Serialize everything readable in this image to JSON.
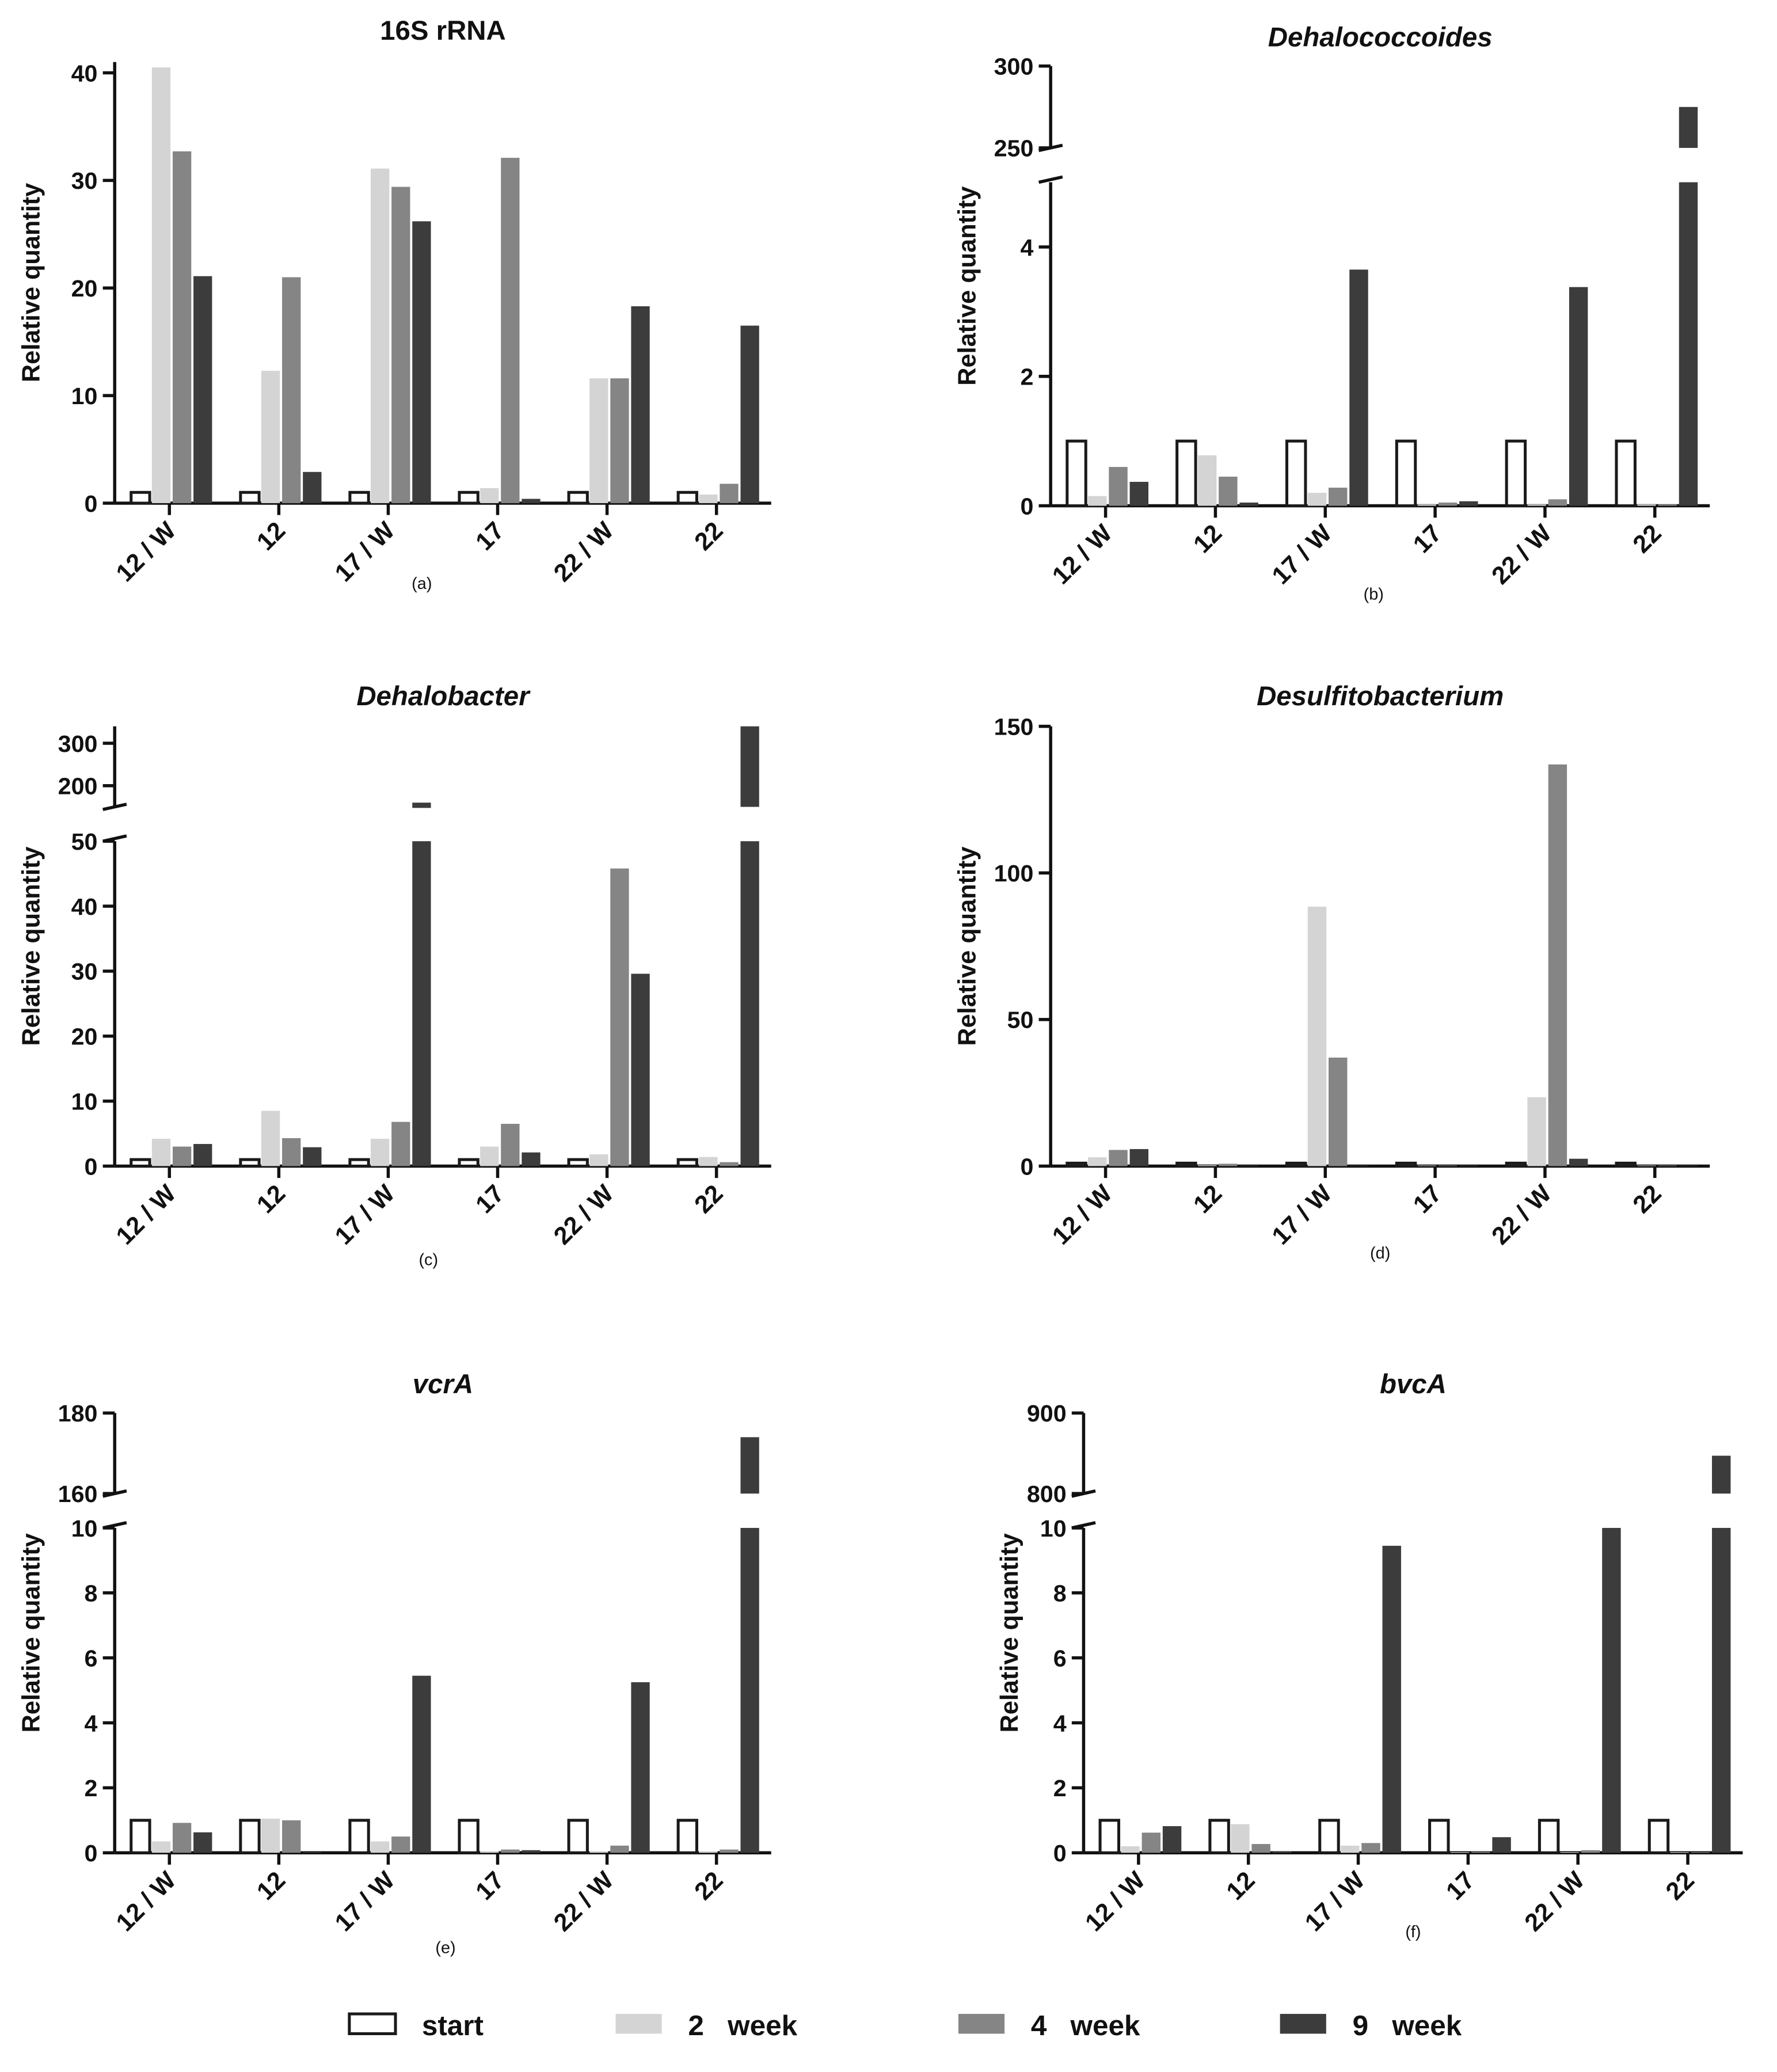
{
  "legend": {
    "items": [
      {
        "key": "start",
        "label": "start",
        "color": "#ffffff"
      },
      {
        "key": "w2",
        "label": "2   week",
        "color": "#d4d4d4"
      },
      {
        "key": "w4",
        "label": "4   week",
        "color": "#858585"
      },
      {
        "key": "w9",
        "label": "9   week",
        "color": "#3c3c3c"
      }
    ],
    "outline_color": "#1a1a1a"
  },
  "chart_data": [
    {
      "type": "bar",
      "title": "16S rRNA",
      "title_italic": false,
      "caption": "(a)",
      "ylabel": "Relative quantity",
      "categories": [
        "12 / W",
        "12",
        "17 / W",
        "17",
        "22 / W",
        "22"
      ],
      "broken_axis": false,
      "ylim": [
        0,
        41
      ],
      "yticks": [
        0,
        10,
        20,
        30,
        40
      ],
      "series": [
        {
          "name": "start",
          "values": [
            1,
            1,
            1,
            1,
            1,
            1
          ]
        },
        {
          "name": "2 week",
          "values": [
            40.5,
            12.3,
            31.1,
            1.4,
            11.6,
            0.8
          ]
        },
        {
          "name": "4 week",
          "values": [
            32.7,
            21,
            29.4,
            32.1,
            11.6,
            1.8
          ]
        },
        {
          "name": "9 week",
          "values": [
            21.1,
            2.9,
            26.2,
            0.4,
            18.3,
            16.5
          ]
        }
      ]
    },
    {
      "type": "bar",
      "title": "Dehalococcoides",
      "title_italic": true,
      "caption": "(b)",
      "ylabel": "Relative quantity",
      "categories": [
        "12 / W",
        "12",
        "17 / W",
        "17",
        "22 / W",
        "22"
      ],
      "broken_axis": true,
      "ylim_lower": [
        0,
        5
      ],
      "ylim_upper": [
        250,
        300
      ],
      "yticks_lower": [
        0,
        2,
        4
      ],
      "yticks_upper": [
        250,
        300
      ],
      "series": [
        {
          "name": "start",
          "values": [
            1,
            1,
            1,
            1,
            1,
            1
          ]
        },
        {
          "name": "2 week",
          "values": [
            0.15,
            0.78,
            0.2,
            0.02,
            0.02,
            0.02
          ]
        },
        {
          "name": "4 week",
          "values": [
            0.6,
            0.45,
            0.28,
            0.05,
            0.1,
            0.02
          ]
        },
        {
          "name": "9 week",
          "values": [
            0.37,
            0.05,
            3.65,
            0.07,
            3.38,
            275
          ]
        }
      ]
    },
    {
      "type": "bar",
      "title": "Dehalobacter",
      "title_italic": true,
      "caption": "(c)",
      "ylabel": "Relative quantity",
      "categories": [
        "12 / W",
        "12",
        "17 / W",
        "17",
        "22 / W",
        "22"
      ],
      "broken_axis": true,
      "ylim_lower": [
        0,
        50
      ],
      "ylim_upper": [
        150,
        340
      ],
      "yticks_lower": [
        0,
        10,
        20,
        30,
        40,
        50
      ],
      "yticks_upper": [
        200,
        300
      ],
      "series": [
        {
          "name": "start",
          "values": [
            1,
            1,
            1,
            1,
            1,
            1
          ]
        },
        {
          "name": "2 week",
          "values": [
            4.2,
            8.5,
            4.2,
            3,
            1.8,
            1.4
          ]
        },
        {
          "name": "4 week",
          "values": [
            3,
            4.3,
            6.8,
            6.5,
            45.8,
            0.6
          ]
        },
        {
          "name": "9 week",
          "values": [
            3.4,
            2.9,
            160,
            2.1,
            29.6,
            340
          ]
        }
      ]
    },
    {
      "type": "bar",
      "title": "Desulfitobacterium",
      "title_italic": true,
      "caption": "(d)",
      "ylabel": "Relative quantity",
      "categories": [
        "12 / W",
        "12",
        "17 / W",
        "17",
        "22 / W",
        "22"
      ],
      "broken_axis": false,
      "ylim": [
        0,
        150
      ],
      "yticks": [
        0,
        50,
        100,
        150
      ],
      "series": [
        {
          "name": "start",
          "values": [
            1,
            1,
            1,
            1,
            1,
            1
          ]
        },
        {
          "name": "2 week",
          "values": [
            3,
            0.3,
            88.5,
            0.2,
            23.5,
            0.2
          ]
        },
        {
          "name": "4 week",
          "values": [
            5.5,
            0.8,
            37,
            0.2,
            137,
            0.2
          ]
        },
        {
          "name": "9 week",
          "values": [
            5.8,
            0.2,
            0.2,
            0.2,
            2.5,
            0.2
          ]
        }
      ]
    },
    {
      "type": "bar",
      "title": "vcrA",
      "title_italic": true,
      "caption": "(e)",
      "ylabel": "Relative quantity",
      "categories": [
        "12 / W",
        "12",
        "17 / W",
        "17",
        "22 / W",
        "22"
      ],
      "broken_axis": true,
      "ylim_lower": [
        0,
        10
      ],
      "ylim_upper": [
        160,
        180
      ],
      "yticks_lower": [
        0,
        2,
        4,
        6,
        8,
        10
      ],
      "yticks_upper": [
        160,
        180
      ],
      "series": [
        {
          "name": "start",
          "values": [
            1,
            1,
            1,
            1,
            1,
            1
          ]
        },
        {
          "name": "2 week",
          "values": [
            0.35,
            1.05,
            0.35,
            0.05,
            0.05,
            0.05
          ]
        },
        {
          "name": "4 week",
          "values": [
            0.92,
            1,
            0.5,
            0.1,
            0.22,
            0.1
          ]
        },
        {
          "name": "9 week",
          "values": [
            0.63,
            0.02,
            5.45,
            0.08,
            5.25,
            174
          ]
        }
      ]
    },
    {
      "type": "bar",
      "title": "bvcA",
      "title_italic": true,
      "caption": "(f)",
      "ylabel": "Relative quantity",
      "categories": [
        "12 / W",
        "12",
        "17 / W",
        "17",
        "22 / W",
        "22"
      ],
      "broken_axis": true,
      "ylim_lower": [
        0,
        10
      ],
      "ylim_upper": [
        800,
        900
      ],
      "yticks_lower": [
        0,
        2,
        4,
        6,
        8,
        10
      ],
      "yticks_upper": [
        800,
        900
      ],
      "series": [
        {
          "name": "start",
          "values": [
            1,
            1,
            1,
            1,
            1,
            1
          ]
        },
        {
          "name": "2 week",
          "values": [
            0.2,
            0.88,
            0.22,
            0.02,
            0.02,
            0.02
          ]
        },
        {
          "name": "4 week",
          "values": [
            0.62,
            0.27,
            0.3,
            0.03,
            0.08,
            0.02
          ]
        },
        {
          "name": "9 week",
          "values": [
            0.82,
            0.05,
            9.45,
            0.48,
            10.2,
            847
          ]
        }
      ]
    }
  ]
}
